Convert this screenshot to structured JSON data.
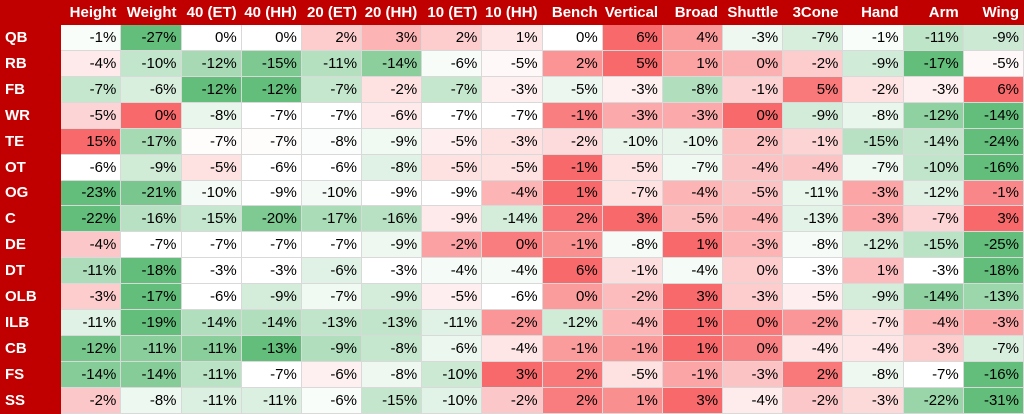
{
  "colors": {
    "header": "#c00000",
    "high": "#f8696b",
    "mid": "#ffffff",
    "low": "#63be7b"
  },
  "chart_data": {
    "type": "heatmap",
    "columns": [
      "Height",
      "Weight",
      "40 (ET)",
      "40 (HH)",
      "20 (ET)",
      "20 (HH)",
      "10 (ET)",
      "10 (HH)",
      "Bench",
      "Vertical",
      "Broad",
      "Shuttle",
      "3Cone",
      "Hand",
      "Arm",
      "Wing"
    ],
    "rows": [
      {
        "label": "QB",
        "values": [
          -1,
          -27,
          0,
          0,
          2,
          3,
          2,
          1,
          0,
          6,
          4,
          -3,
          -7,
          -1,
          -11,
          -9
        ]
      },
      {
        "label": "RB",
        "values": [
          -4,
          -10,
          -12,
          -15,
          -11,
          -14,
          -6,
          -5,
          2,
          5,
          1,
          0,
          -2,
          -9,
          -17,
          -5
        ]
      },
      {
        "label": "FB",
        "values": [
          -7,
          -6,
          -12,
          -12,
          -7,
          -2,
          -7,
          -3,
          -5,
          -3,
          -8,
          -1,
          5,
          -2,
          -3,
          6
        ]
      },
      {
        "label": "WR",
        "values": [
          -5,
          0,
          -8,
          -7,
          -7,
          -6,
          -7,
          -7,
          -1,
          -3,
          -3,
          0,
          -9,
          -8,
          -12,
          -14
        ]
      },
      {
        "label": "TE",
        "values": [
          15,
          -17,
          -7,
          -7,
          -8,
          -9,
          -5,
          -3,
          -2,
          -10,
          -10,
          2,
          -1,
          -15,
          -14,
          -24
        ]
      },
      {
        "label": "OT",
        "values": [
          -6,
          -9,
          -5,
          -6,
          -6,
          -8,
          -5,
          -5,
          -1,
          -5,
          -7,
          -4,
          -4,
          -7,
          -10,
          -16
        ]
      },
      {
        "label": "OG",
        "values": [
          -23,
          -21,
          -10,
          -9,
          -10,
          -9,
          -9,
          -4,
          1,
          -7,
          -4,
          -5,
          -11,
          -3,
          -12,
          -1
        ]
      },
      {
        "label": "C",
        "values": [
          -22,
          -16,
          -15,
          -20,
          -17,
          -16,
          -9,
          -14,
          2,
          3,
          -5,
          -4,
          -13,
          -3,
          -7,
          3
        ]
      },
      {
        "label": "DE",
        "values": [
          -4,
          -7,
          -7,
          -7,
          -7,
          -9,
          -2,
          0,
          -1,
          -8,
          1,
          -3,
          -8,
          -12,
          -15,
          -25
        ]
      },
      {
        "label": "DT",
        "values": [
          -11,
          -18,
          -3,
          -3,
          -6,
          -3,
          -4,
          -4,
          6,
          -1,
          -4,
          0,
          -3,
          1,
          -3,
          -18
        ]
      },
      {
        "label": "OLB",
        "values": [
          -3,
          -17,
          -6,
          -9,
          -7,
          -9,
          -5,
          -6,
          0,
          -2,
          3,
          -3,
          -5,
          -9,
          -14,
          -13
        ]
      },
      {
        "label": "ILB",
        "values": [
          -11,
          -19,
          -14,
          -14,
          -13,
          -13,
          -11,
          -2,
          -12,
          -4,
          1,
          0,
          -2,
          -7,
          -4,
          -3
        ]
      },
      {
        "label": "CB",
        "values": [
          -12,
          -11,
          -11,
          -13,
          -9,
          -8,
          -6,
          -4,
          -1,
          -1,
          1,
          0,
          -4,
          -4,
          -3,
          -7
        ]
      },
      {
        "label": "FS",
        "values": [
          -14,
          -14,
          -11,
          -7,
          -6,
          -8,
          -10,
          3,
          2,
          -5,
          -1,
          -3,
          2,
          -8,
          -7,
          -16
        ]
      },
      {
        "label": "SS",
        "values": [
          -2,
          -8,
          -11,
          -11,
          -6,
          -15,
          -10,
          -2,
          2,
          1,
          3,
          -4,
          -2,
          -3,
          -22,
          -31
        ]
      }
    ]
  }
}
